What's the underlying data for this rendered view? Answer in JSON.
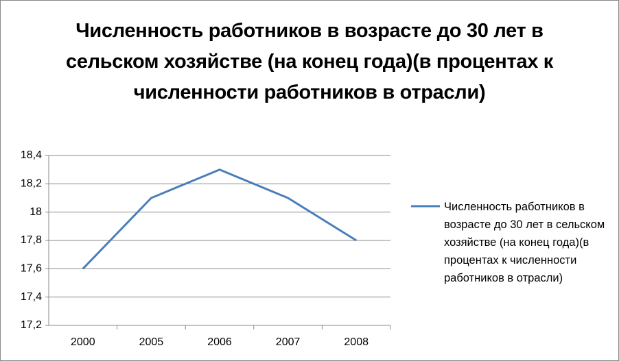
{
  "chart_data": {
    "type": "line",
    "title": "Численность работников в возрасте до 30 лет в сельском хозяйстве (на конец года)(в процентах к численности работников в отрасли)",
    "categories": [
      "2000",
      "2005",
      "2006",
      "2007",
      "2008"
    ],
    "series": [
      {
        "name": "Численность работников в возрасте до 30 лет в сельском хозяйстве (на конец года)(в процентах к численности работников в отрасли)",
        "color": "#4a7ebb",
        "values": [
          17.6,
          18.1,
          18.3,
          18.1,
          17.8
        ]
      }
    ],
    "ylim": [
      17.2,
      18.4
    ],
    "yticks": [
      {
        "value": 17.2,
        "label": "17,2"
      },
      {
        "value": 17.4,
        "label": "17,4"
      },
      {
        "value": 17.6,
        "label": "17,6"
      },
      {
        "value": 17.8,
        "label": "17,8"
      },
      18,
      {
        "value": 18.2,
        "label": "18,2"
      },
      {
        "value": 18.4,
        "label": "18,4"
      }
    ],
    "grid": true,
    "legend": "right"
  }
}
